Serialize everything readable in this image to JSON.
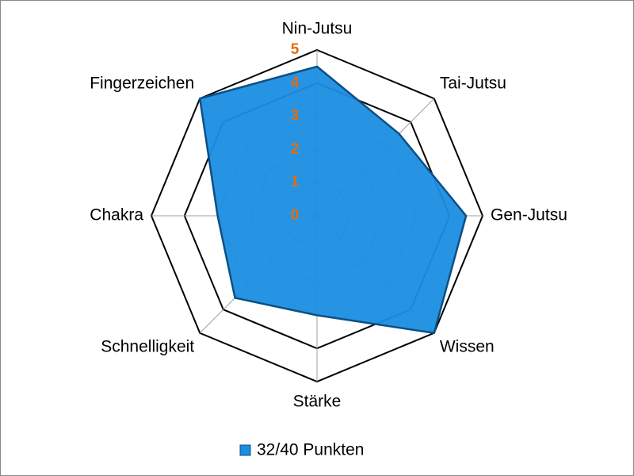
{
  "chart_data": {
    "type": "radar",
    "categories": [
      "Nin-Jutsu",
      "Tai-Jutsu",
      "Gen-Jutsu",
      "Wissen",
      "Stärke",
      "Schnelligkeit",
      "Chakra",
      "Fingerzeichen"
    ],
    "series": [
      {
        "name": "32/40 Punkten",
        "color": "#1a8ee0",
        "values": [
          4.5,
          3.5,
          4.5,
          5,
          3,
          3.5,
          3,
          5
        ]
      }
    ],
    "ylim": [
      0,
      5
    ],
    "yticks": [
      0,
      1,
      2,
      3,
      4,
      5
    ],
    "grid": true,
    "legend": "bottom"
  }
}
